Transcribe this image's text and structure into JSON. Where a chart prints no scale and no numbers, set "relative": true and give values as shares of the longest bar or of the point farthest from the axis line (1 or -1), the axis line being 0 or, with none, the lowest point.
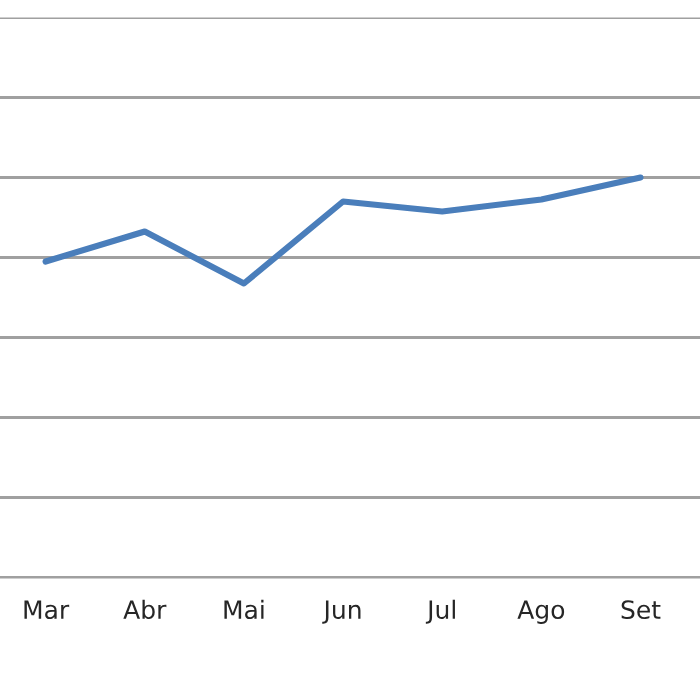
{
  "chart_data": {
    "type": "line",
    "relative": true,
    "grid": "y",
    "marker": "none",
    "line_style": "solid",
    "categories": [
      "Mar",
      "Abr",
      "Mai",
      "Jun",
      "Jul",
      "Ago",
      "Set"
    ],
    "series": [
      {
        "color": "#4a7ebb",
        "values": [
          0.79,
          0.865,
          0.735,
          0.94,
          0.915,
          0.945,
          1.0
        ]
      }
    ]
  }
}
